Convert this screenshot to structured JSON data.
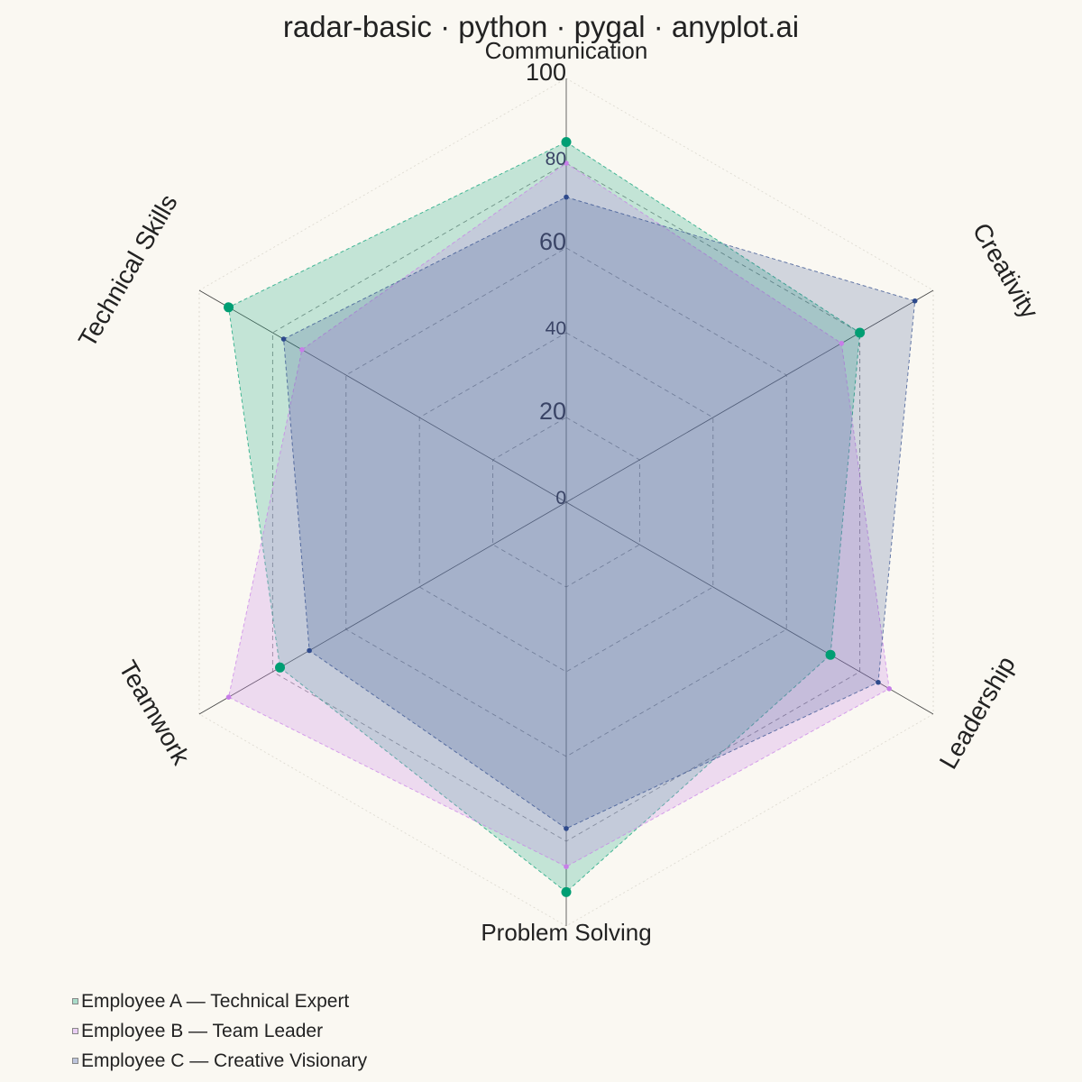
{
  "chart_data": {
    "type": "radar",
    "title": "radar-basic · python · pygal · anyplot.ai",
    "axes": [
      "Communication",
      "Creativity",
      "Leadership",
      "Problem Solving",
      "Teamwork",
      "Technical Skills"
    ],
    "rlim": [
      0,
      100
    ],
    "radial_ticks": [
      "0",
      "20",
      "40",
      "60",
      "80",
      "100"
    ],
    "grid": true,
    "legend_position": "bottom-left",
    "series": [
      {
        "name": "Employee A — Technical Expert",
        "color": "#009e73",
        "values": [
          85,
          80,
          72,
          92,
          78,
          92
        ]
      },
      {
        "name": "Employee B — Team Leader",
        "color": "#c77ee8",
        "values": [
          80,
          75,
          88,
          86,
          92,
          72
        ]
      },
      {
        "name": "Employee C — Creative Visionary",
        "color": "#2e4a8c",
        "values": [
          72,
          95,
          85,
          77,
          70,
          77
        ]
      }
    ]
  }
}
